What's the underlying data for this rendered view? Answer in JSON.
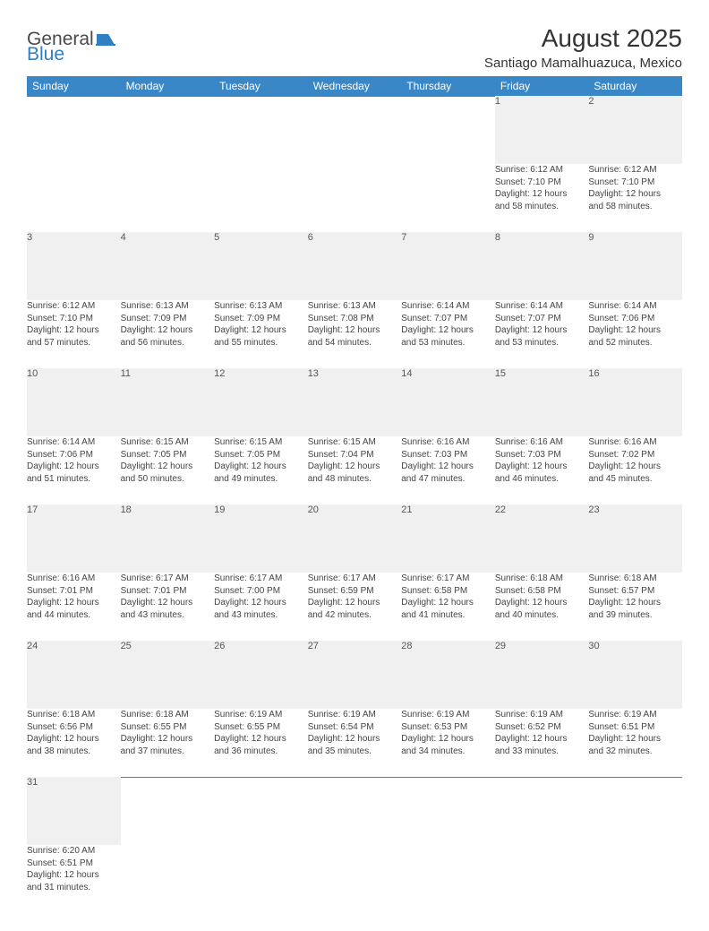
{
  "logo": {
    "text1": "General",
    "text2": "Blue"
  },
  "title": "August 2025",
  "location": "Santiago Mamalhuazuca, Mexico",
  "colors": {
    "header_bg": "#3a87c7",
    "header_text": "#ffffff",
    "daynum_bg": "#f0f0f0",
    "daynum_text": "#555555",
    "body_text": "#444444",
    "rule": "#3a87c7",
    "logo_gray": "#4a4a4a",
    "logo_blue": "#2f7fc2"
  },
  "day_labels": [
    "Sunday",
    "Monday",
    "Tuesday",
    "Wednesday",
    "Thursday",
    "Friday",
    "Saturday"
  ],
  "weeks": [
    [
      null,
      null,
      null,
      null,
      null,
      {
        "n": "1",
        "sr": "Sunrise: 6:12 AM",
        "ss": "Sunset: 7:10 PM",
        "dl1": "Daylight: 12 hours",
        "dl2": "and 58 minutes."
      },
      {
        "n": "2",
        "sr": "Sunrise: 6:12 AM",
        "ss": "Sunset: 7:10 PM",
        "dl1": "Daylight: 12 hours",
        "dl2": "and 58 minutes."
      }
    ],
    [
      {
        "n": "3",
        "sr": "Sunrise: 6:12 AM",
        "ss": "Sunset: 7:10 PM",
        "dl1": "Daylight: 12 hours",
        "dl2": "and 57 minutes."
      },
      {
        "n": "4",
        "sr": "Sunrise: 6:13 AM",
        "ss": "Sunset: 7:09 PM",
        "dl1": "Daylight: 12 hours",
        "dl2": "and 56 minutes."
      },
      {
        "n": "5",
        "sr": "Sunrise: 6:13 AM",
        "ss": "Sunset: 7:09 PM",
        "dl1": "Daylight: 12 hours",
        "dl2": "and 55 minutes."
      },
      {
        "n": "6",
        "sr": "Sunrise: 6:13 AM",
        "ss": "Sunset: 7:08 PM",
        "dl1": "Daylight: 12 hours",
        "dl2": "and 54 minutes."
      },
      {
        "n": "7",
        "sr": "Sunrise: 6:14 AM",
        "ss": "Sunset: 7:07 PM",
        "dl1": "Daylight: 12 hours",
        "dl2": "and 53 minutes."
      },
      {
        "n": "8",
        "sr": "Sunrise: 6:14 AM",
        "ss": "Sunset: 7:07 PM",
        "dl1": "Daylight: 12 hours",
        "dl2": "and 53 minutes."
      },
      {
        "n": "9",
        "sr": "Sunrise: 6:14 AM",
        "ss": "Sunset: 7:06 PM",
        "dl1": "Daylight: 12 hours",
        "dl2": "and 52 minutes."
      }
    ],
    [
      {
        "n": "10",
        "sr": "Sunrise: 6:14 AM",
        "ss": "Sunset: 7:06 PM",
        "dl1": "Daylight: 12 hours",
        "dl2": "and 51 minutes."
      },
      {
        "n": "11",
        "sr": "Sunrise: 6:15 AM",
        "ss": "Sunset: 7:05 PM",
        "dl1": "Daylight: 12 hours",
        "dl2": "and 50 minutes."
      },
      {
        "n": "12",
        "sr": "Sunrise: 6:15 AM",
        "ss": "Sunset: 7:05 PM",
        "dl1": "Daylight: 12 hours",
        "dl2": "and 49 minutes."
      },
      {
        "n": "13",
        "sr": "Sunrise: 6:15 AM",
        "ss": "Sunset: 7:04 PM",
        "dl1": "Daylight: 12 hours",
        "dl2": "and 48 minutes."
      },
      {
        "n": "14",
        "sr": "Sunrise: 6:16 AM",
        "ss": "Sunset: 7:03 PM",
        "dl1": "Daylight: 12 hours",
        "dl2": "and 47 minutes."
      },
      {
        "n": "15",
        "sr": "Sunrise: 6:16 AM",
        "ss": "Sunset: 7:03 PM",
        "dl1": "Daylight: 12 hours",
        "dl2": "and 46 minutes."
      },
      {
        "n": "16",
        "sr": "Sunrise: 6:16 AM",
        "ss": "Sunset: 7:02 PM",
        "dl1": "Daylight: 12 hours",
        "dl2": "and 45 minutes."
      }
    ],
    [
      {
        "n": "17",
        "sr": "Sunrise: 6:16 AM",
        "ss": "Sunset: 7:01 PM",
        "dl1": "Daylight: 12 hours",
        "dl2": "and 44 minutes."
      },
      {
        "n": "18",
        "sr": "Sunrise: 6:17 AM",
        "ss": "Sunset: 7:01 PM",
        "dl1": "Daylight: 12 hours",
        "dl2": "and 43 minutes."
      },
      {
        "n": "19",
        "sr": "Sunrise: 6:17 AM",
        "ss": "Sunset: 7:00 PM",
        "dl1": "Daylight: 12 hours",
        "dl2": "and 43 minutes."
      },
      {
        "n": "20",
        "sr": "Sunrise: 6:17 AM",
        "ss": "Sunset: 6:59 PM",
        "dl1": "Daylight: 12 hours",
        "dl2": "and 42 minutes."
      },
      {
        "n": "21",
        "sr": "Sunrise: 6:17 AM",
        "ss": "Sunset: 6:58 PM",
        "dl1": "Daylight: 12 hours",
        "dl2": "and 41 minutes."
      },
      {
        "n": "22",
        "sr": "Sunrise: 6:18 AM",
        "ss": "Sunset: 6:58 PM",
        "dl1": "Daylight: 12 hours",
        "dl2": "and 40 minutes."
      },
      {
        "n": "23",
        "sr": "Sunrise: 6:18 AM",
        "ss": "Sunset: 6:57 PM",
        "dl1": "Daylight: 12 hours",
        "dl2": "and 39 minutes."
      }
    ],
    [
      {
        "n": "24",
        "sr": "Sunrise: 6:18 AM",
        "ss": "Sunset: 6:56 PM",
        "dl1": "Daylight: 12 hours",
        "dl2": "and 38 minutes."
      },
      {
        "n": "25",
        "sr": "Sunrise: 6:18 AM",
        "ss": "Sunset: 6:55 PM",
        "dl1": "Daylight: 12 hours",
        "dl2": "and 37 minutes."
      },
      {
        "n": "26",
        "sr": "Sunrise: 6:19 AM",
        "ss": "Sunset: 6:55 PM",
        "dl1": "Daylight: 12 hours",
        "dl2": "and 36 minutes."
      },
      {
        "n": "27",
        "sr": "Sunrise: 6:19 AM",
        "ss": "Sunset: 6:54 PM",
        "dl1": "Daylight: 12 hours",
        "dl2": "and 35 minutes."
      },
      {
        "n": "28",
        "sr": "Sunrise: 6:19 AM",
        "ss": "Sunset: 6:53 PM",
        "dl1": "Daylight: 12 hours",
        "dl2": "and 34 minutes."
      },
      {
        "n": "29",
        "sr": "Sunrise: 6:19 AM",
        "ss": "Sunset: 6:52 PM",
        "dl1": "Daylight: 12 hours",
        "dl2": "and 33 minutes."
      },
      {
        "n": "30",
        "sr": "Sunrise: 6:19 AM",
        "ss": "Sunset: 6:51 PM",
        "dl1": "Daylight: 12 hours",
        "dl2": "and 32 minutes."
      }
    ],
    [
      {
        "n": "31",
        "sr": "Sunrise: 6:20 AM",
        "ss": "Sunset: 6:51 PM",
        "dl1": "Daylight: 12 hours",
        "dl2": "and 31 minutes."
      },
      null,
      null,
      null,
      null,
      null,
      null
    ]
  ]
}
